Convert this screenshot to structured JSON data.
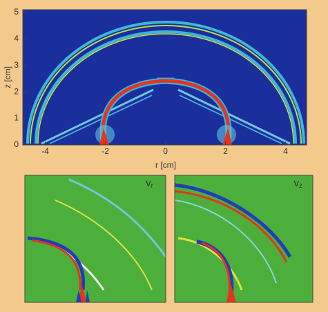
{
  "chart_data": [
    {
      "type": "heatmap",
      "xlabel": "r [cm]",
      "ylabel": "z [cm]",
      "xlim": [
        -4.75,
        4.7
      ],
      "ylim": [
        0,
        5.1
      ],
      "xticks": [
        -4,
        -2,
        0,
        2,
        4
      ],
      "yticks": [
        0,
        1,
        2,
        3,
        4,
        5
      ]
    },
    {
      "type": "heatmap",
      "label": "v",
      "label_sub": "r"
    },
    {
      "type": "heatmap",
      "label": "v",
      "label_sub": "z"
    }
  ]
}
